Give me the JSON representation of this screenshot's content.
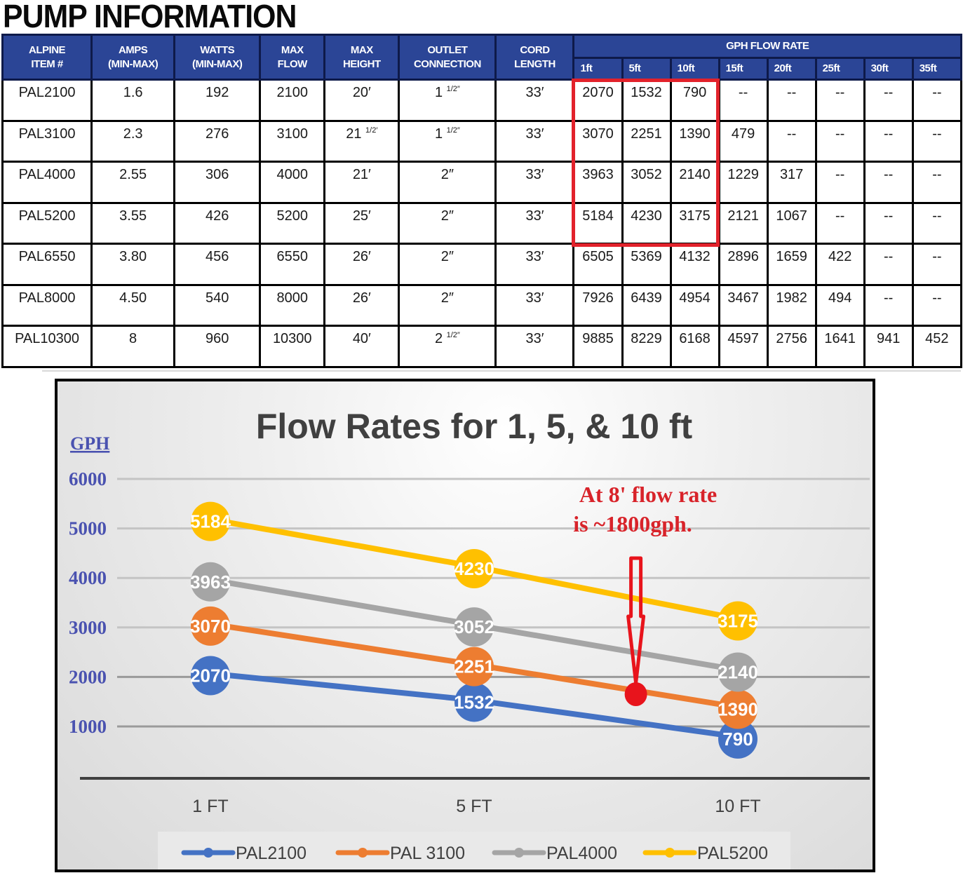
{
  "page": {
    "title": "PUMP INFORMATION"
  },
  "table": {
    "headers": {
      "item": [
        "ALPINE",
        "ITEM #"
      ],
      "amps": [
        "AMPS",
        "(MIN-MAX)"
      ],
      "watts": [
        "WATTS",
        "(MIN-MAX)"
      ],
      "max_flow": [
        "MAX",
        "FLOW"
      ],
      "max_height": [
        "MAX",
        "HEIGHT"
      ],
      "outlet": [
        "OUTLET",
        "CONNECTION"
      ],
      "cord": [
        "CORD",
        "LENGTH"
      ],
      "gph_group": "GPH FLOW RATE",
      "gph_columns": [
        "1ft",
        "5ft",
        "10ft",
        "15ft",
        "20ft",
        "25ft",
        "30ft",
        "35ft"
      ]
    },
    "rows": [
      {
        "item": "PAL2100",
        "amps": "1.6",
        "watts": "192",
        "max_flow": "2100",
        "max_height": "20′",
        "max_height_frac": "",
        "outlet": "1",
        "outlet_frac": "1/2″",
        "cord": "33′",
        "gph": [
          "2070",
          "1532",
          "790",
          "--",
          "--",
          "--",
          "--",
          "--"
        ]
      },
      {
        "item": "PAL3100",
        "amps": "2.3",
        "watts": "276",
        "max_flow": "3100",
        "max_height": "21",
        "max_height_frac": "1/2′",
        "outlet": "1",
        "outlet_frac": "1/2″",
        "cord": "33′",
        "gph": [
          "3070",
          "2251",
          "1390",
          "479",
          "--",
          "--",
          "--",
          "--"
        ]
      },
      {
        "item": "PAL4000",
        "amps": "2.55",
        "watts": "306",
        "max_flow": "4000",
        "max_height": "21′",
        "max_height_frac": "",
        "outlet": "2″",
        "outlet_frac": "",
        "cord": "33′",
        "gph": [
          "3963",
          "3052",
          "2140",
          "1229",
          "317",
          "--",
          "--",
          "--"
        ]
      },
      {
        "item": "PAL5200",
        "amps": "3.55",
        "watts": "426",
        "max_flow": "5200",
        "max_height": "25′",
        "max_height_frac": "",
        "outlet": "2″",
        "outlet_frac": "",
        "cord": "33′",
        "gph": [
          "5184",
          "4230",
          "3175",
          "2121",
          "1067",
          "--",
          "--",
          "--"
        ]
      },
      {
        "item": "PAL6550",
        "amps": "3.80",
        "watts": "456",
        "max_flow": "6550",
        "max_height": "26′",
        "max_height_frac": "",
        "outlet": "2″",
        "outlet_frac": "",
        "cord": "33′",
        "gph": [
          "6505",
          "5369",
          "4132",
          "2896",
          "1659",
          "422",
          "--",
          "--"
        ]
      },
      {
        "item": "PAL8000",
        "amps": "4.50",
        "watts": "540",
        "max_flow": "8000",
        "max_height": "26′",
        "max_height_frac": "",
        "outlet": "2″",
        "outlet_frac": "",
        "cord": "33′",
        "gph": [
          "7926",
          "6439",
          "4954",
          "3467",
          "1982",
          "494",
          "--",
          "--"
        ]
      },
      {
        "item": "PAL10300",
        "amps": "8",
        "watts": "960",
        "max_flow": "10300",
        "max_height": "40′",
        "max_height_frac": "",
        "outlet": "2",
        "outlet_frac": "1/2″",
        "cord": "33′",
        "gph": [
          "9885",
          "8229",
          "6168",
          "4597",
          "2756",
          "1641",
          "941",
          "452"
        ]
      }
    ],
    "highlight_color": "#e2222b",
    "header_color": "#2b4596"
  },
  "chart": {
    "annotation_line1": "At 8' flow rate",
    "annotation_line2": "is ~1800gph.",
    "annotation_color": "#d8232a",
    "marker_color": "#e8141c"
  },
  "chart_data": {
    "type": "line",
    "title": "Flow Rates for 1, 5, & 10 ft",
    "xlabel": "",
    "ylabel": "GPH",
    "categories": [
      "1 FT",
      "5 FT",
      "10 FT"
    ],
    "yticks": [
      1000,
      2000,
      3000,
      4000,
      5000,
      6000
    ],
    "ylim": [
      0,
      6000
    ],
    "grid": true,
    "legend_position": "bottom",
    "series": [
      {
        "name": "PAL2100",
        "color": "#4472c4",
        "values": [
          2070,
          1532,
          790
        ]
      },
      {
        "name": "PAL 3100",
        "color": "#ed7d31",
        "values": [
          3070,
          2251,
          1390
        ]
      },
      {
        "name": "PAL4000",
        "color": "#a5a5a5",
        "values": [
          3963,
          3052,
          2140
        ]
      },
      {
        "name": "PAL5200",
        "color": "#ffc000",
        "values": [
          5184,
          4230,
          3175
        ]
      }
    ],
    "annotations": [
      {
        "text": "At 8' flow rate is ~1800gph.",
        "x_ft": 8,
        "y": 1800
      }
    ]
  }
}
